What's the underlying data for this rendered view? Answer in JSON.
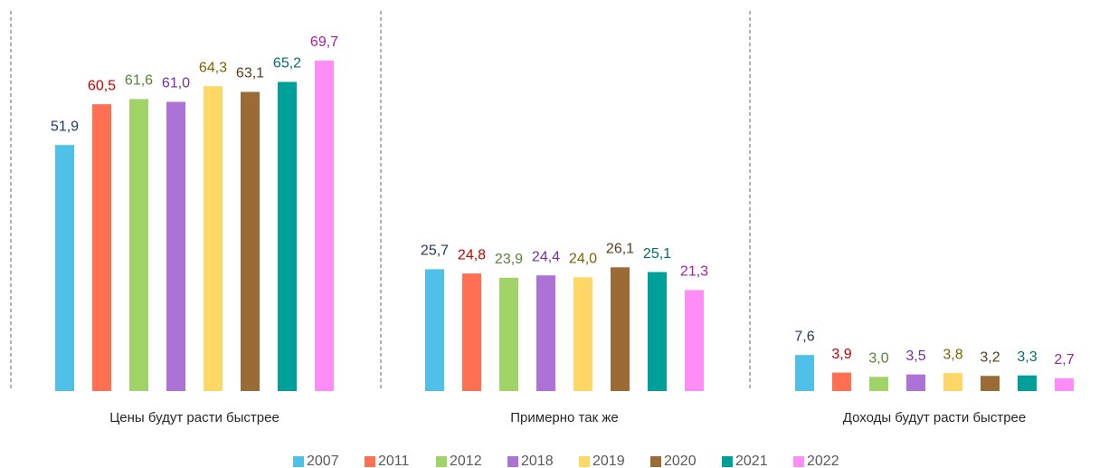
{
  "chart_data": {
    "type": "bar",
    "categories": [
      "Цены будут расти быстрее",
      "Примерно так же",
      "Доходы будут расти быстрее"
    ],
    "ylim": [
      0,
      80
    ],
    "legend": "bottom",
    "series": [
      {
        "name": "2007",
        "color": "#4fc1e9",
        "label_color": "#1f3864",
        "values": [
          51.9,
          25.7,
          7.6
        ],
        "value_labels": [
          "51,9",
          "25,7",
          "7,6"
        ]
      },
      {
        "name": "2011",
        "color": "#ff7052",
        "label_color": "#c00000",
        "values": [
          60.5,
          24.8,
          3.9
        ],
        "value_labels": [
          "60,5",
          "24,8",
          "3,9"
        ]
      },
      {
        "name": "2012",
        "color": "#a0d468",
        "label_color": "#548235",
        "values": [
          61.6,
          23.9,
          3.0
        ],
        "value_labels": [
          "61,6",
          "23,9",
          "3,0"
        ]
      },
      {
        "name": "2018",
        "color": "#ac72d6",
        "label_color": "#7030a0",
        "values": [
          61.0,
          24.4,
          3.5
        ],
        "value_labels": [
          "61,0",
          "24,4",
          "3,5"
        ]
      },
      {
        "name": "2019",
        "color": "#ffd766",
        "label_color": "#7f6000",
        "values": [
          64.3,
          24.0,
          3.8
        ],
        "value_labels": [
          "64,3",
          "24,0",
          "3,8"
        ]
      },
      {
        "name": "2020",
        "color": "#9b6b35",
        "label_color": "#5a3a1a",
        "values": [
          63.1,
          26.1,
          3.2
        ],
        "value_labels": [
          "63,1",
          "26,1",
          "3,2"
        ]
      },
      {
        "name": "2021",
        "color": "#00a09a",
        "label_color": "#006e6e",
        "values": [
          65.2,
          25.1,
          3.3
        ],
        "value_labels": [
          "65,2",
          "25,1",
          "3,3"
        ]
      },
      {
        "name": "2022",
        "color": "#ff8cf7",
        "label_color": "#a020a0",
        "values": [
          69.7,
          21.3,
          2.7
        ],
        "value_labels": [
          "69,7",
          "21,3",
          "2,7"
        ]
      }
    ]
  }
}
